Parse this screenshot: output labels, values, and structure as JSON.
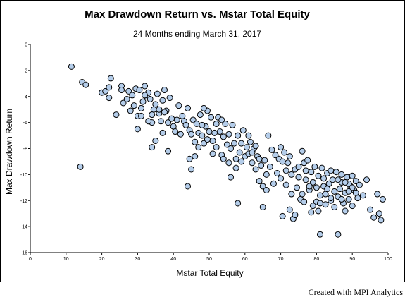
{
  "chart_data": {
    "type": "scatter",
    "title": "Max Drawdown Return vs. Mstar Total Equity",
    "subtitle": "24 Months ending March 31, 2017",
    "xlabel": "Mstar Total Equity",
    "ylabel": "Max Drawdown Return",
    "xlim": [
      0,
      100
    ],
    "ylim": [
      -16,
      0
    ],
    "x_ticks": [
      0,
      10,
      20,
      30,
      40,
      50,
      60,
      70,
      80,
      90,
      100
    ],
    "y_ticks": [
      0,
      -2,
      -4,
      -6,
      -8,
      -10,
      -12,
      -14,
      -16
    ],
    "grid": false,
    "legend": "none",
    "marker_color": "#b4cdea",
    "marker_edge_color": "#000000",
    "points": [
      [
        11.5,
        -1.7
      ],
      [
        14.5,
        -2.9
      ],
      [
        15.5,
        -3.1
      ],
      [
        14.0,
        -9.4
      ],
      [
        20.0,
        -3.7
      ],
      [
        21.0,
        -3.6
      ],
      [
        22.0,
        -3.3
      ],
      [
        22.5,
        -2.6
      ],
      [
        22.0,
        -4.1
      ],
      [
        24.0,
        -5.4
      ],
      [
        25.5,
        -3.2
      ],
      [
        25.5,
        -3.5
      ],
      [
        26.0,
        -4.5
      ],
      [
        27.0,
        -4.2
      ],
      [
        27.5,
        -3.6
      ],
      [
        28.0,
        -5.1
      ],
      [
        28.5,
        -3.9
      ],
      [
        29.0,
        -4.7
      ],
      [
        29.5,
        -3.4
      ],
      [
        30.0,
        -5.5
      ],
      [
        30.5,
        -3.5
      ],
      [
        31.0,
        -5.5
      ],
      [
        31.5,
        -4.4
      ],
      [
        32.0,
        -3.2
      ],
      [
        32.5,
        -4.0
      ],
      [
        33.0,
        -3.7
      ],
      [
        33.5,
        -4.2
      ],
      [
        34.0,
        -6.0
      ],
      [
        34.5,
        -5.0
      ],
      [
        34.0,
        -7.9
      ],
      [
        35.0,
        -4.6
      ],
      [
        35.5,
        -3.8
      ],
      [
        36.0,
        -5.3
      ],
      [
        36.5,
        -5.9
      ],
      [
        37.0,
        -4.3
      ],
      [
        37.5,
        -3.5
      ],
      [
        38.0,
        -5.1
      ],
      [
        38.5,
        -6.0
      ],
      [
        39.0,
        -4.1
      ],
      [
        38.5,
        -8.2
      ],
      [
        30.0,
        -6.5
      ],
      [
        31.0,
        -4.9
      ],
      [
        32.0,
        -3.9
      ],
      [
        33.0,
        -5.9
      ],
      [
        34.0,
        -5.4
      ],
      [
        35.0,
        -7.4
      ],
      [
        36.0,
        -5.0
      ],
      [
        37.0,
        -6.8
      ],
      [
        37.5,
        -5.2
      ],
      [
        39.5,
        -5.7
      ],
      [
        40.0,
        -6.3
      ],
      [
        40.5,
        -6.7
      ],
      [
        41.0,
        -5.8
      ],
      [
        41.5,
        -4.7
      ],
      [
        42.0,
        -6.9
      ],
      [
        42.5,
        -5.5
      ],
      [
        43.0,
        -5.9
      ],
      [
        43.5,
        -6.2
      ],
      [
        44.0,
        -4.9
      ],
      [
        44.5,
        -6.6
      ],
      [
        45.0,
        -6.9
      ],
      [
        45.5,
        -5.8
      ],
      [
        46.0,
        -7.5
      ],
      [
        46.5,
        -6.1
      ],
      [
        47.0,
        -6.8
      ],
      [
        47.5,
        -5.4
      ],
      [
        48.0,
        -7.0
      ],
      [
        48.5,
        -7.6
      ],
      [
        49.0,
        -6.3
      ],
      [
        49.5,
        -5.1
      ],
      [
        44.0,
        -10.9
      ],
      [
        44.5,
        -8.8
      ],
      [
        45.0,
        -9.6
      ],
      [
        46.0,
        -8.6
      ],
      [
        47.0,
        -7.9
      ],
      [
        48.0,
        -6.2
      ],
      [
        48.5,
        -4.9
      ],
      [
        49.5,
        -7.3
      ],
      [
        50.0,
        -6.7
      ],
      [
        50.5,
        -5.6
      ],
      [
        51.0,
        -7.4
      ],
      [
        51.5,
        -6.8
      ],
      [
        52.0,
        -7.9
      ],
      [
        52.5,
        -5.6
      ],
      [
        53.0,
        -6.7
      ],
      [
        53.5,
        -8.5
      ],
      [
        54.0,
        -7.1
      ],
      [
        54.5,
        -6.1
      ],
      [
        55.0,
        -7.7
      ],
      [
        55.5,
        -6.9
      ],
      [
        56.0,
        -8.0
      ],
      [
        56.5,
        -6.2
      ],
      [
        57.0,
        -7.6
      ],
      [
        57.5,
        -8.8
      ],
      [
        58.0,
        -7.0
      ],
      [
        58.5,
        -8.3
      ],
      [
        59.0,
        -7.6
      ],
      [
        59.5,
        -6.6
      ],
      [
        60.0,
        -8.6
      ],
      [
        60.5,
        -7.9
      ],
      [
        51.0,
        -8.4
      ],
      [
        52.0,
        -6.1
      ],
      [
        53.5,
        -5.8
      ],
      [
        54.0,
        -8.8
      ],
      [
        55.5,
        -9.1
      ],
      [
        56.0,
        -10.2
      ],
      [
        57.5,
        -9.5
      ],
      [
        58.0,
        -12.2
      ],
      [
        59.0,
        -9.0
      ],
      [
        61.0,
        -8.4
      ],
      [
        61.5,
        -7.5
      ],
      [
        62.0,
        -9.1
      ],
      [
        62.5,
        -8.0
      ],
      [
        63.0,
        -9.6
      ],
      [
        63.5,
        -8.6
      ],
      [
        64.0,
        -10.5
      ],
      [
        64.5,
        -9.3
      ],
      [
        65.0,
        -10.9
      ],
      [
        65.5,
        -8.9
      ],
      [
        66.0,
        -10.0
      ],
      [
        61.0,
        -7.0
      ],
      [
        62.0,
        -8.3
      ],
      [
        63.0,
        -7.8
      ],
      [
        64.0,
        -8.8
      ],
      [
        65.0,
        -12.5
      ],
      [
        66.0,
        -11.2
      ],
      [
        66.5,
        -7.0
      ],
      [
        67.0,
        -9.4
      ],
      [
        67.5,
        -8.1
      ],
      [
        68.0,
        -10.7
      ],
      [
        68.5,
        -8.5
      ],
      [
        69.0,
        -9.9
      ],
      [
        69.5,
        -8.8
      ],
      [
        70.0,
        -10.3
      ],
      [
        70.5,
        -9.0
      ],
      [
        71.0,
        -8.3
      ],
      [
        71.5,
        -9.7
      ],
      [
        72.0,
        -9.1
      ],
      [
        72.5,
        -8.6
      ],
      [
        73.0,
        -10.0
      ],
      [
        70.0,
        -7.9
      ],
      [
        70.5,
        -13.2
      ],
      [
        71.5,
        -10.8
      ],
      [
        72.5,
        -12.7
      ],
      [
        73.5,
        -13.4
      ],
      [
        74.0,
        -9.6
      ],
      [
        74.5,
        -11.0
      ],
      [
        75.0,
        -9.4
      ],
      [
        75.5,
        -11.9
      ],
      [
        76.0,
        -8.2
      ],
      [
        76.5,
        -9.1
      ],
      [
        77.0,
        -10.4
      ],
      [
        77.5,
        -8.9
      ],
      [
        78.0,
        -11.2
      ],
      [
        78.5,
        -9.8
      ],
      [
        79.0,
        -10.6
      ],
      [
        79.5,
        -9.4
      ],
      [
        80.0,
        -12.1
      ],
      [
        80.5,
        -10.1
      ],
      [
        81.0,
        -11.6
      ],
      [
        81.5,
        -9.5
      ],
      [
        82.0,
        -10.9
      ],
      [
        82.5,
        -11.5
      ],
      [
        83.0,
        -9.9
      ],
      [
        83.5,
        -10.7
      ],
      [
        84.0,
        -12.0
      ],
      [
        84.5,
        -10.4
      ],
      [
        85.0,
        -11.3
      ],
      [
        85.5,
        -9.8
      ],
      [
        86.0,
        -11.7
      ],
      [
        81.0,
        -14.6
      ],
      [
        86.0,
        -14.6
      ],
      [
        80.5,
        -12.8
      ],
      [
        82.5,
        -12.3
      ],
      [
        84.0,
        -11.8
      ],
      [
        85.0,
        -12.5
      ],
      [
        86.5,
        -11.1
      ],
      [
        87.0,
        -10.6
      ],
      [
        87.5,
        -12.2
      ],
      [
        88.0,
        -11.4
      ],
      [
        88.5,
        -10.2
      ],
      [
        89.0,
        -11.9
      ],
      [
        89.5,
        -10.9
      ],
      [
        90.0,
        -12.4
      ],
      [
        90.5,
        -11.2
      ],
      [
        91.0,
        -10.5
      ],
      [
        91.5,
        -11.8
      ],
      [
        92.0,
        -10.8
      ],
      [
        93.0,
        -11.6
      ],
      [
        94.0,
        -10.4
      ],
      [
        95.0,
        -12.7
      ],
      [
        96.0,
        -13.3
      ],
      [
        97.0,
        -11.5
      ],
      [
        98.0,
        -13.5
      ],
      [
        98.5,
        -11.9
      ],
      [
        97.5,
        -13.0
      ],
      [
        87.0,
        -10.0
      ],
      [
        88.0,
        -12.8
      ],
      [
        89.0,
        -10.7
      ],
      [
        90.0,
        -11.0
      ],
      [
        75.0,
        -10.2
      ],
      [
        76.0,
        -11.5
      ],
      [
        77.0,
        -9.7
      ],
      [
        78.0,
        -10.9
      ],
      [
        79.0,
        -12.4
      ],
      [
        80.0,
        -11.0
      ],
      [
        81.0,
        -12.2
      ],
      [
        82.0,
        -10.3
      ],
      [
        83.0,
        -11.1
      ],
      [
        84.0,
        -9.7
      ],
      [
        86.0,
        -10.4
      ],
      [
        87.0,
        -11.9
      ],
      [
        88.0,
        -10.6
      ],
      [
        89.0,
        -11.3
      ],
      [
        90.0,
        -10.1
      ],
      [
        91.0,
        -11.4
      ],
      [
        73.0,
        -11.5
      ],
      [
        74.0,
        -13.1
      ],
      [
        76.5,
        -12.1
      ],
      [
        78.5,
        -12.9
      ]
    ]
  },
  "footer": {
    "credit": "Created with MPI Analytics"
  }
}
